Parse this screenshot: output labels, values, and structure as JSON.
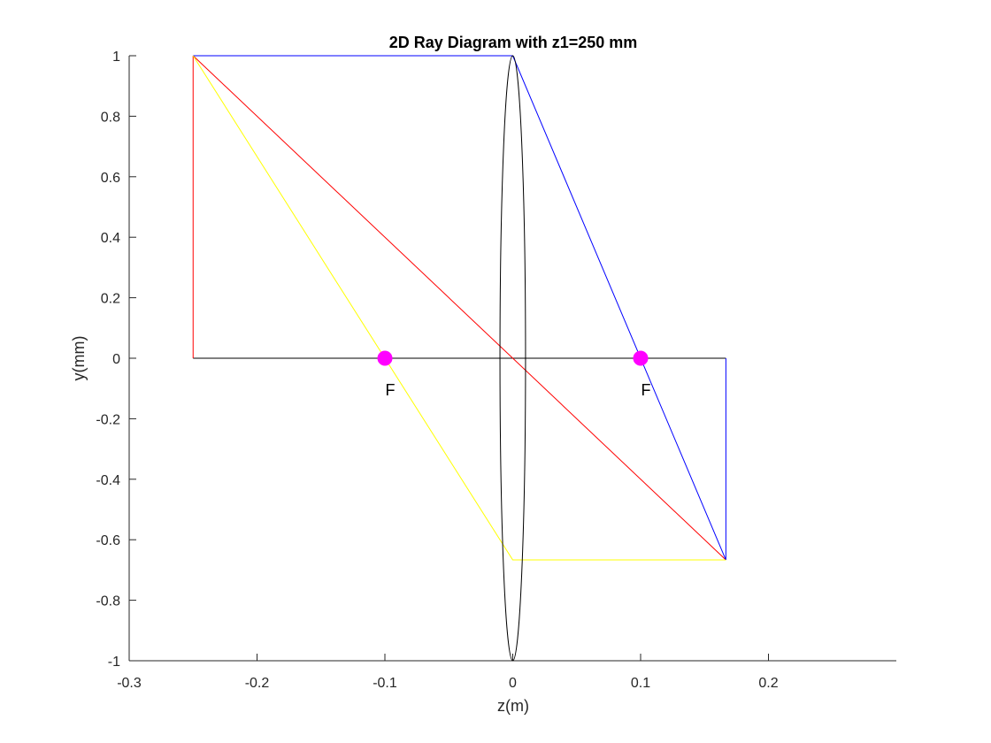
{
  "chart_data": {
    "type": "line",
    "title": "2D Ray Diagram with z1=250 mm",
    "xlabel": "z(m)",
    "ylabel": "y(mm)",
    "xlim": [
      -0.3,
      0.3
    ],
    "ylim": [
      -1,
      1
    ],
    "x_ticks": [
      -0.3,
      -0.2,
      -0.1,
      0,
      0.1,
      0.2
    ],
    "x_tick_labels": [
      "-0.3",
      "-0.2",
      "-0.1",
      "0",
      "0.1",
      "0.2"
    ],
    "y_ticks": [
      -1,
      -0.8,
      -0.6,
      -0.4,
      -0.2,
      0,
      0.2,
      0.4,
      0.6,
      0.8,
      1
    ],
    "y_tick_labels": [
      "-1",
      "-0.8",
      "-0.6",
      "-0.4",
      "-0.2",
      "0",
      "0.2",
      "0.4",
      "0.6",
      "0.8",
      "1"
    ],
    "grid": false,
    "box": false,
    "series": [
      {
        "color": "#000000",
        "x": [
          -0.25,
          0.1667
        ],
        "y": [
          0,
          0
        ]
      },
      {
        "color": "#ff0000",
        "x": [
          -0.25,
          -0.25
        ],
        "y": [
          0,
          1
        ]
      },
      {
        "color": "#ff0000",
        "x": [
          -0.25,
          0.1667
        ],
        "y": [
          1,
          -0.6667
        ]
      },
      {
        "color": "#0000ff",
        "x": [
          0.1667,
          0.1667
        ],
        "y": [
          0,
          -0.6667
        ]
      },
      {
        "color": "#0000ff",
        "x": [
          -0.25,
          0,
          0.1667
        ],
        "y": [
          1,
          1,
          -0.6667
        ]
      },
      {
        "color": "#ffff00",
        "x": [
          -0.25,
          0,
          0.1667
        ],
        "y": [
          1,
          -0.6667,
          -0.6667
        ]
      }
    ],
    "lens": {
      "center_x": 0,
      "half_width": 0.01,
      "y_range": [
        -1,
        1
      ],
      "color": "#000000"
    },
    "focal_points": [
      {
        "x": -0.1,
        "y": 0,
        "label": "F",
        "color": "#ff00ff"
      },
      {
        "x": 0.1,
        "y": 0,
        "label": "F",
        "color": "#ff00ff"
      }
    ]
  }
}
